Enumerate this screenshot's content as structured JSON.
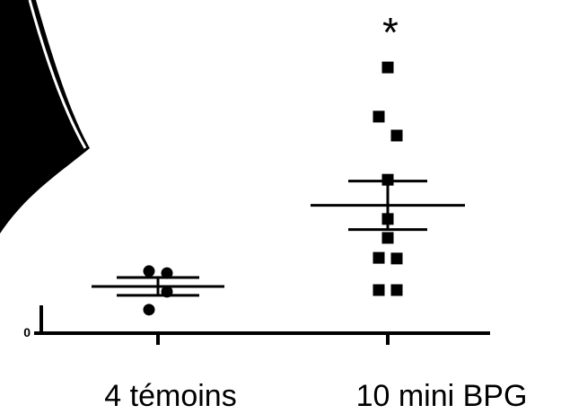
{
  "chart_data": {
    "type": "dotplot",
    "ylim": [
      0,
      100
    ],
    "yticks": [
      0
    ],
    "groups": [
      {
        "label": "4 témoins",
        "marker": "circle",
        "values": [
          18.4,
          17.8,
          12.2,
          6.8
        ],
        "mean": 13.8,
        "sem": 2.7
      },
      {
        "label": "10 mini BPG",
        "marker": "square",
        "values": [
          79.7,
          64.9,
          59.2,
          45.9,
          34.1,
          28.4,
          22.4,
          22.2,
          12.7,
          12.7
        ],
        "mean": 38.2,
        "sem": 7.3,
        "annotation": "*"
      }
    ],
    "color": "#000000"
  }
}
